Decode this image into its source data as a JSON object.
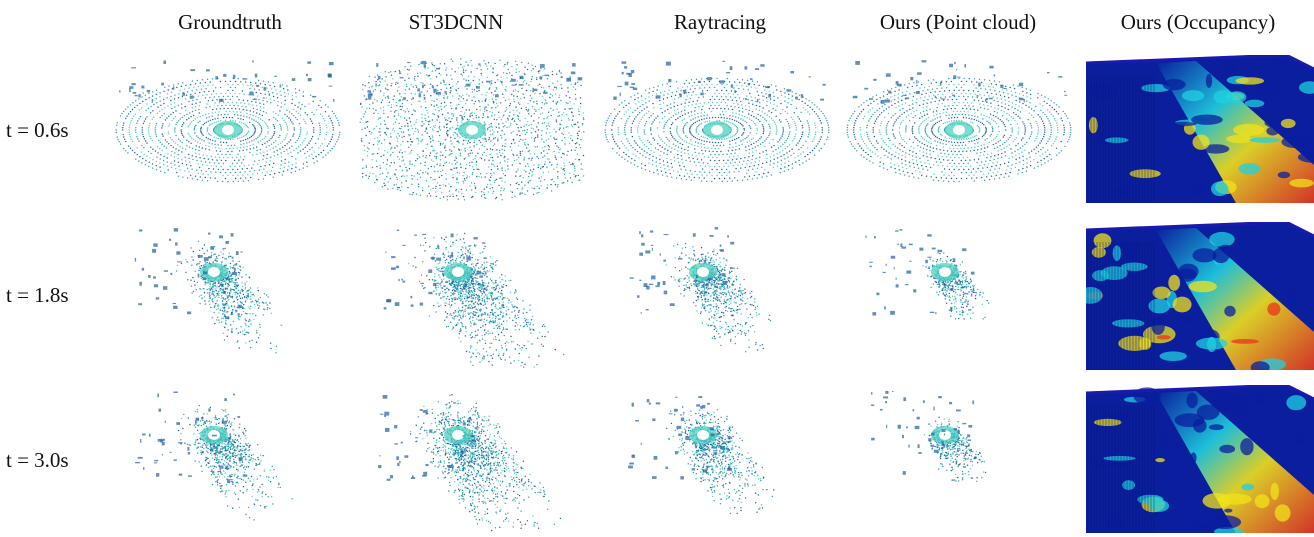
{
  "columns": [
    "Groundtruth",
    "ST3DCNN",
    "Raytracing",
    "Ours (Point cloud)",
    "Ours (Occupancy)"
  ],
  "rows": [
    "t = 0.6s",
    "t = 1.8s",
    "t = 3.0s"
  ],
  "colors": {
    "point_dark": "#1f5fa8",
    "point_mid": "#2a9fb5",
    "point_light": "#4fd0c0",
    "occ_low": "#0a1e9e",
    "occ_mid": "#1fd0e0",
    "occ_high": "#f2e21a",
    "occ_peak": "#e8361c"
  }
}
